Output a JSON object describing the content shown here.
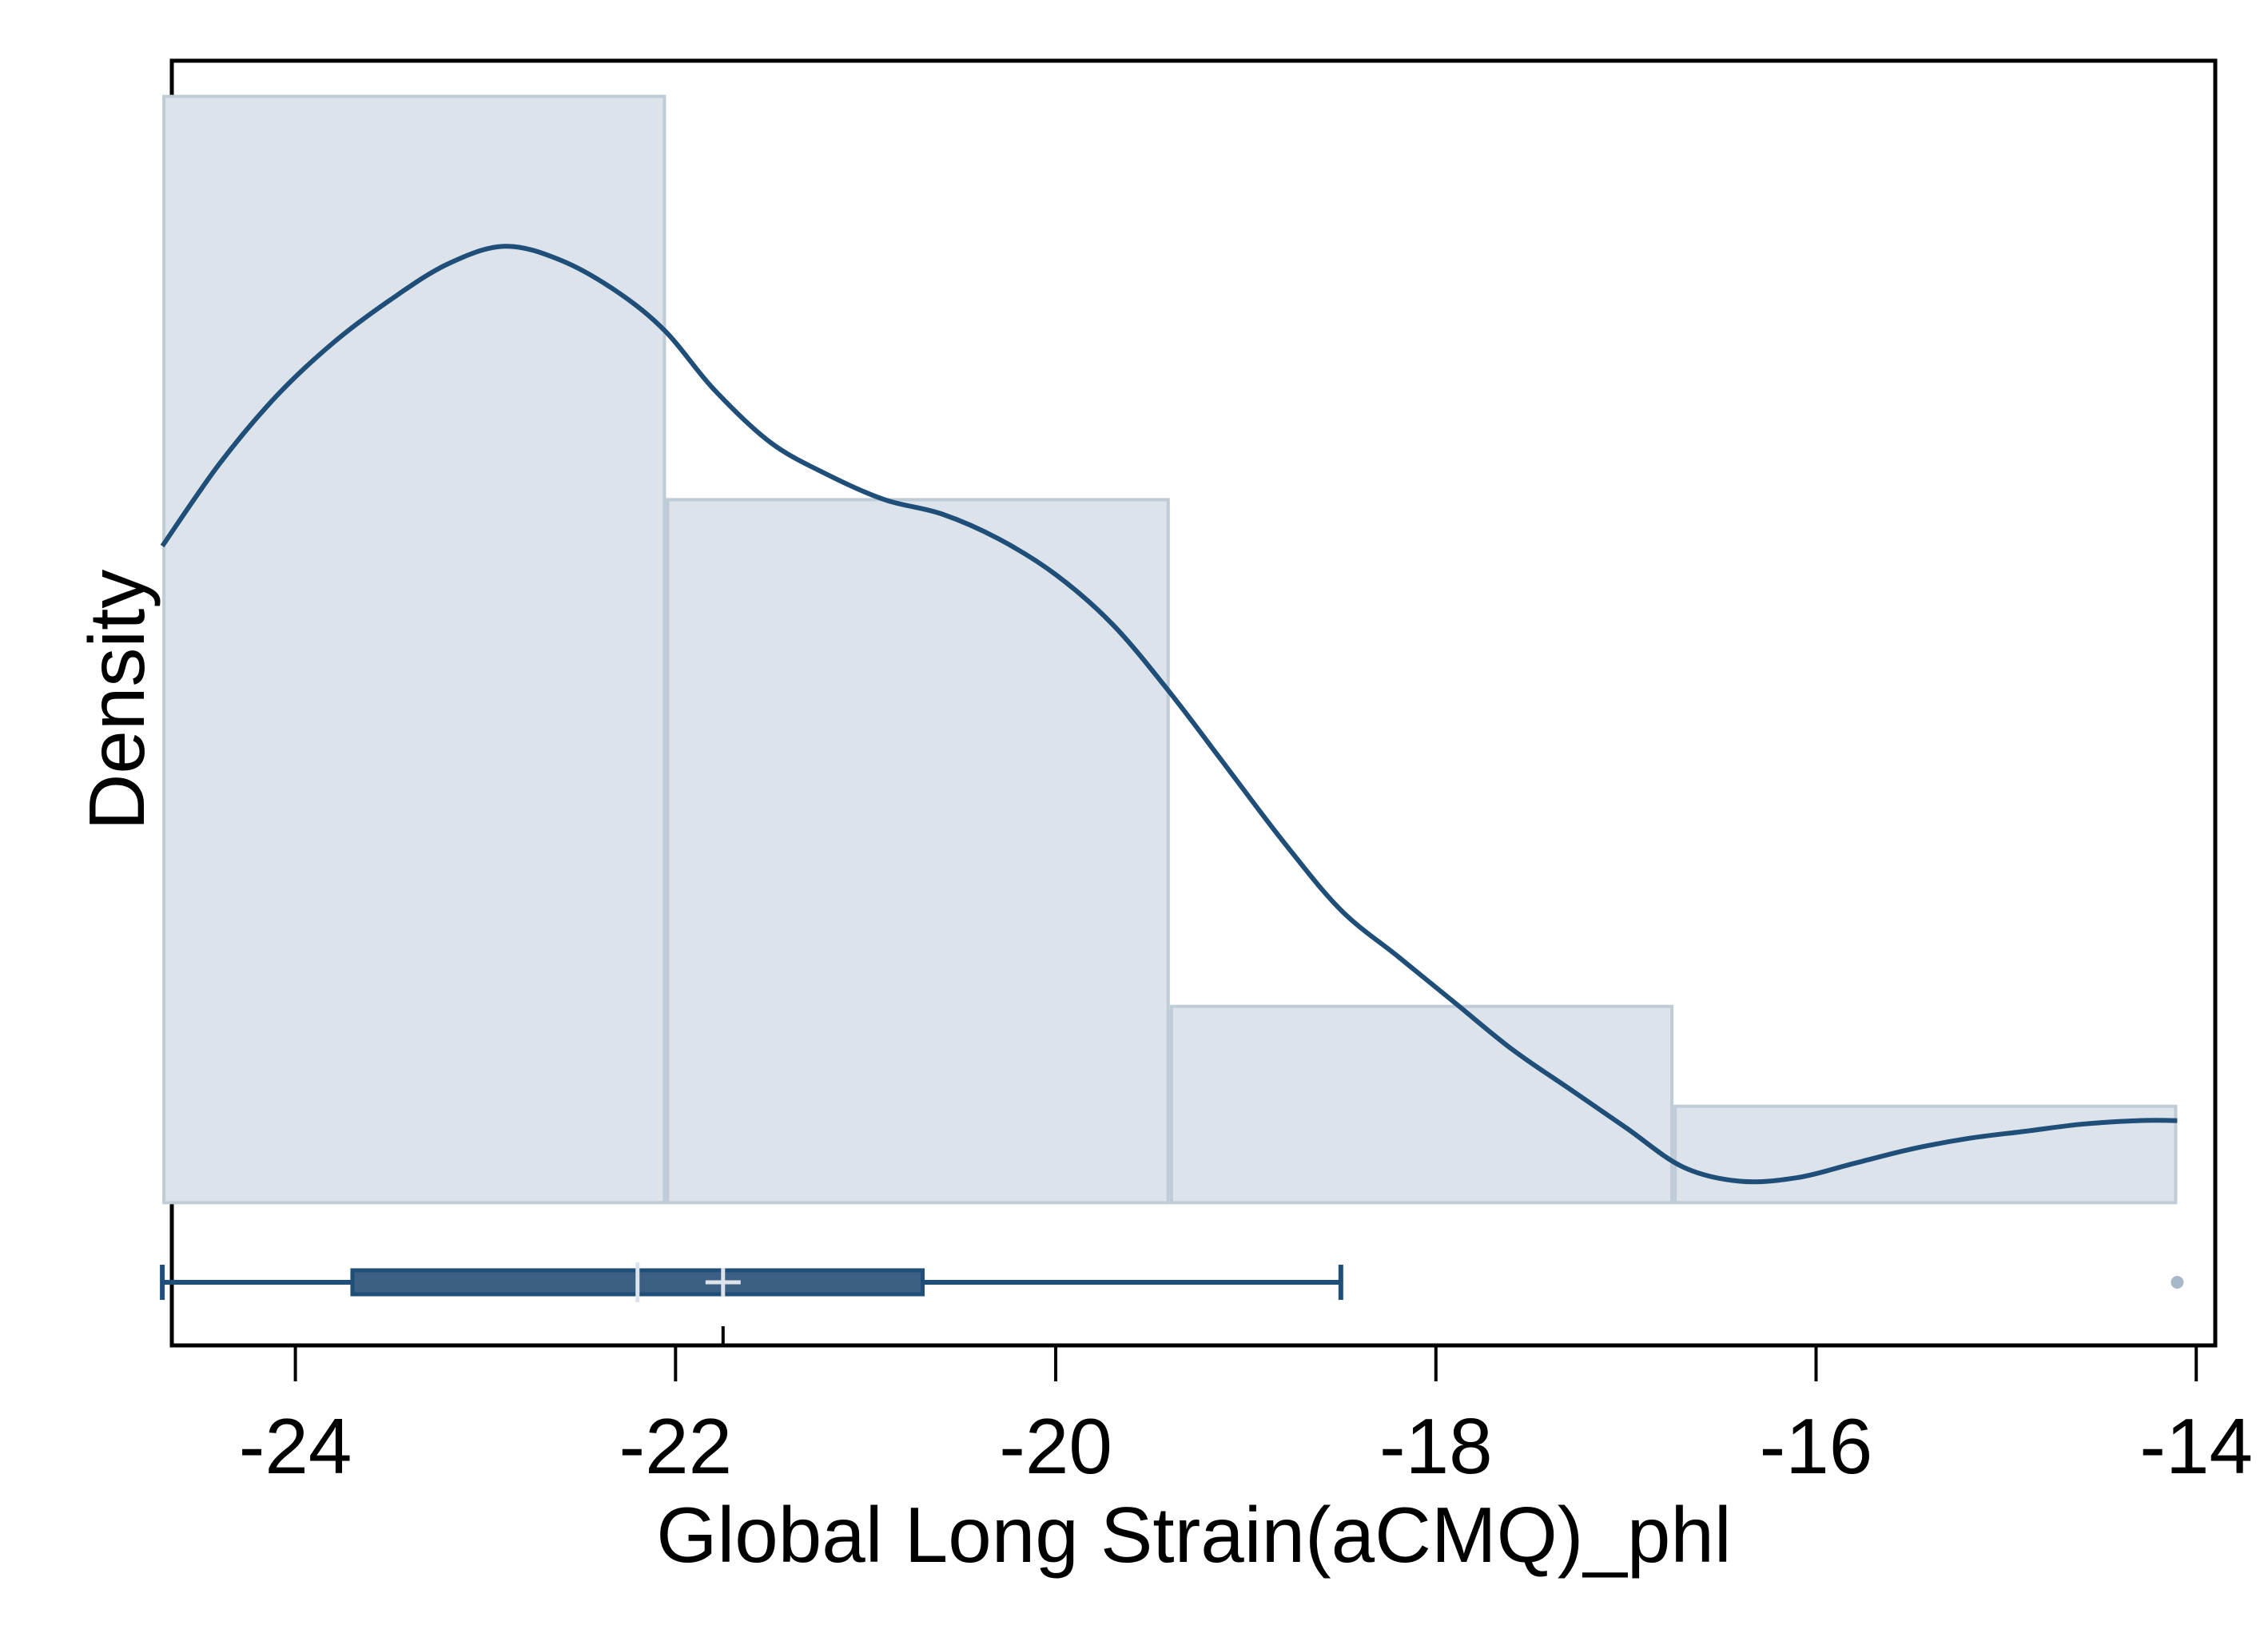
{
  "chart_data": {
    "type": "histogram",
    "xlabel": "Global Long Strain(aCMQ)_phl",
    "ylabel": "Density",
    "xlim": [
      -24.65,
      -13.9
    ],
    "xticks": [
      -24,
      -22,
      -20,
      -18,
      -16,
      -14
    ],
    "xtick_labels": [
      "-24",
      "-22",
      "-20",
      "-18",
      "-16",
      "-14"
    ],
    "ylim": [
      -0.04,
      0.32
    ],
    "histogram": {
      "bins": [
        {
          "x0": -24.7,
          "x1": -22.05,
          "density": 0.31
        },
        {
          "x0": -22.05,
          "x1": -19.4,
          "density": 0.197
        },
        {
          "x0": -19.4,
          "x1": -16.75,
          "density": 0.055
        },
        {
          "x0": -16.75,
          "x1": -14.1,
          "density": 0.027
        }
      ]
    },
    "kde": {
      "x": [
        -24.7,
        -24.4,
        -24.1,
        -23.8,
        -23.5,
        -23.2,
        -22.9,
        -22.6,
        -22.3,
        -22.05,
        -21.8,
        -21.5,
        -21.2,
        -20.9,
        -20.6,
        -20.3,
        -20.0,
        -19.7,
        -19.4,
        -19.1,
        -18.8,
        -18.5,
        -18.2,
        -17.9,
        -17.6,
        -17.3,
        -17.0,
        -16.7,
        -16.4,
        -16.1,
        -15.8,
        -15.5,
        -15.2,
        -14.9,
        -14.6,
        -14.3,
        -14.1
      ],
      "y": [
        0.184,
        0.207,
        0.226,
        0.241,
        0.253,
        0.263,
        0.268,
        0.264,
        0.255,
        0.244,
        0.228,
        0.213,
        0.204,
        0.197,
        0.193,
        0.186,
        0.176,
        0.162,
        0.143,
        0.122,
        0.101,
        0.082,
        0.069,
        0.056,
        0.043,
        0.032,
        0.021,
        0.01,
        0.006,
        0.007,
        0.011,
        0.015,
        0.018,
        0.02,
        0.022,
        0.023,
        0.023
      ]
    },
    "boxplot": {
      "whisker_low": -24.7,
      "q1": -23.7,
      "median": -22.2,
      "mean": -21.75,
      "q3": -20.7,
      "whisker_high": -18.5,
      "outliers": [
        -14.1
      ]
    },
    "colors": {
      "bar_fill": "#dce3ea",
      "bar_stroke": "#bfcbd6",
      "kde_line": "#1f4e79",
      "box_fill": "#3d5f84",
      "box_line": "#1f4e79",
      "median_mark": "#dce3ea",
      "outlier": "#a8b8c8"
    },
    "grid": false
  }
}
